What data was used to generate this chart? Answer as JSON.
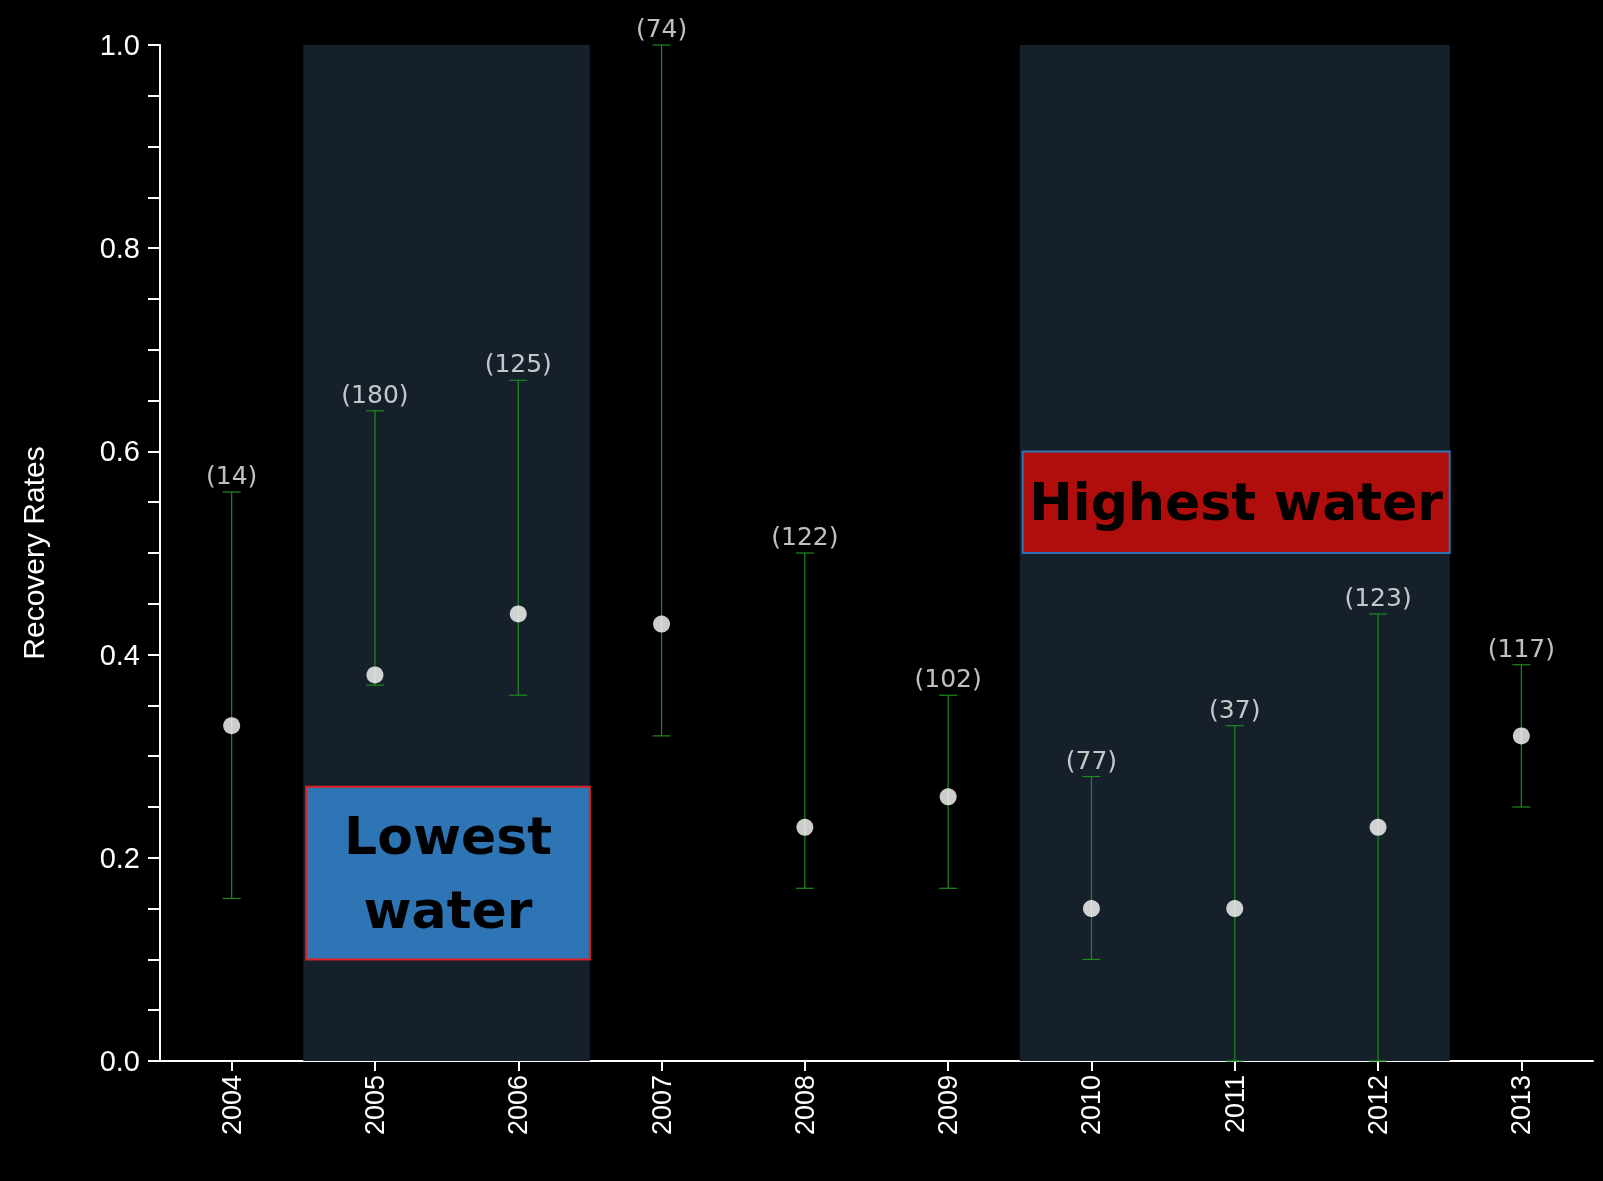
{
  "chart_data": {
    "type": "scatter",
    "ylabel": "Recovery Rates",
    "categories": [
      "2004",
      "2005",
      "2006",
      "2007",
      "2008",
      "2009",
      "2010",
      "2011",
      "2012",
      "2013"
    ],
    "values": [
      0.33,
      0.38,
      0.44,
      0.43,
      0.23,
      0.26,
      0.15,
      0.15,
      0.23,
      0.32
    ],
    "errors": [
      [
        0.16,
        0.56
      ],
      [
        0.37,
        0.64
      ],
      [
        0.36,
        0.67
      ],
      [
        0.32,
        1.0
      ],
      [
        0.17,
        0.5
      ],
      [
        0.17,
        0.36
      ],
      [
        0.1,
        0.28
      ],
      [
        0.0,
        0.33
      ],
      [
        0.0,
        0.44
      ],
      [
        0.25,
        0.39
      ]
    ],
    "color": "#ffffff",
    "marker": "circle",
    "ylim": [
      0,
      1
    ],
    "yticks": [
      {
        "value": 0,
        "label": "0.0"
      },
      {
        "value": 0.05,
        "label": null
      },
      {
        "value": 0.1,
        "label": null
      },
      {
        "value": 0.15,
        "label": null
      },
      {
        "value": 0.2,
        "label": "0.2"
      },
      {
        "value": 0.25,
        "label": null
      },
      {
        "value": 0.3,
        "label": null
      },
      {
        "value": 0.35,
        "label": null
      },
      {
        "value": 0.4,
        "label": "0.4"
      },
      {
        "value": 0.45,
        "label": null
      },
      {
        "value": 0.5,
        "label": null
      },
      {
        "value": 0.55,
        "label": null
      },
      {
        "value": 0.6,
        "label": "0.6"
      },
      {
        "value": 0.65,
        "label": null
      },
      {
        "value": 0.7,
        "label": null
      },
      {
        "value": 0.75,
        "label": null
      },
      {
        "value": 0.8,
        "label": "0.8"
      },
      {
        "value": 0.85,
        "label": null
      },
      {
        "value": 0.9,
        "label": null
      },
      {
        "value": 0.95,
        "label": null
      },
      {
        "value": 1,
        "label": "1.0"
      }
    ],
    "grid": false,
    "bands": [
      {
        "axis": "x",
        "from": "2005",
        "to": "2006",
        "label": "Lowest water",
        "color": "#15202b"
      },
      {
        "axis": "x",
        "from": "2010",
        "to": "2012",
        "label": "Highest water",
        "color": "#15202b"
      }
    ],
    "annotations": [
      {
        "text": "(14)",
        "x": "2004",
        "y": 0.56
      },
      {
        "text": "(180)",
        "x": "2005",
        "y": 0.64
      },
      {
        "text": "(125)",
        "x": "2006",
        "y": 0.67
      },
      {
        "text": "(74)",
        "x": "2007",
        "y": 1.0
      },
      {
        "text": "(122)",
        "x": "2008",
        "y": 0.5
      },
      {
        "text": "(102)",
        "x": "2009",
        "y": 0.36
      },
      {
        "text": "(77)",
        "x": "2010",
        "y": 0.28
      },
      {
        "text": "(37)",
        "x": "2011",
        "y": 0.33
      },
      {
        "text": "(123)",
        "x": "2012",
        "y": 0.44
      },
      {
        "text": "(117)",
        "x": "2013",
        "y": 0.39
      }
    ]
  }
}
